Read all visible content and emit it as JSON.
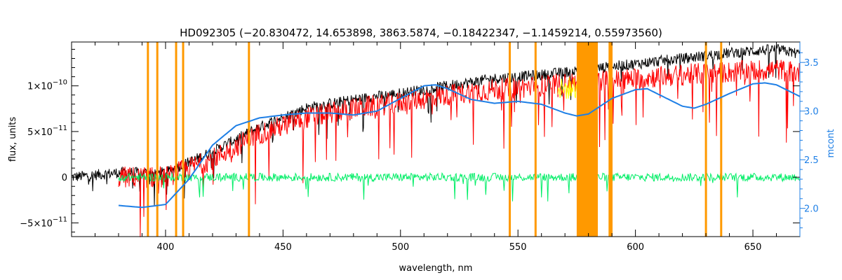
{
  "chart_data": {
    "type": "line",
    "title": "HD092305    (−20.830472, 14.653898, 3863.5874, −0.18422347, −1.1459214, 0.55973560)",
    "xlabel": "wavelength, nm",
    "ylabel": "flux, units",
    "y2label": "mcont",
    "xlim": [
      360,
      670
    ],
    "ylim": [
      -6.5e-11,
      1.48e-10
    ],
    "y2lim": [
      1.71,
      3.71
    ],
    "x_ticks": [
      400,
      450,
      500,
      550,
      600,
      650
    ],
    "x_tick_labels": [
      "400",
      "450",
      "500",
      "550",
      "600",
      "650"
    ],
    "y_ticks": [
      -5e-11,
      0,
      5e-11,
      1e-10
    ],
    "y_tick_labels": [
      {
        "mant": "−5×10",
        "exp": "−11"
      },
      {
        "mant": "0",
        "exp": ""
      },
      {
        "mant": "5×10",
        "exp": "−11"
      },
      {
        "mant": "1×10",
        "exp": "−10"
      }
    ],
    "y2_ticks": [
      2.0,
      2.5,
      3.0,
      3.5
    ],
    "y2_tick_labels": [
      "2.0",
      "2.5",
      "3.0",
      "3.5"
    ],
    "masked_lines_nm": [
      392.5,
      396.5,
      404.5,
      407.5,
      435.5,
      546.5,
      557.5,
      589.0,
      589.8,
      630.0,
      636.5
    ],
    "masked_band_nm": [
      575,
      584
    ],
    "series": [
      {
        "color": "#000000",
        "x": [
          360,
          380,
          400,
          420,
          440,
          460,
          480,
          500,
          520,
          540,
          560,
          580,
          600,
          620,
          640,
          660,
          670
        ],
        "values": [
          0,
          5e-12,
          5e-12,
          2.8e-11,
          5.5e-11,
          7.6e-11,
          8.5e-11,
          9.2e-11,
          1e-10,
          1.08e-10,
          1.12e-10,
          1.18e-10,
          1.24e-10,
          1.3e-10,
          1.36e-10,
          1.4e-10,
          1.35e-10
        ]
      },
      {
        "color": "#ff0000",
        "x": [
          380,
          400,
          420,
          440,
          460,
          480,
          500,
          520,
          540,
          560,
          580,
          600,
          620,
          640,
          660,
          670
        ],
        "values": [
          0,
          0,
          2e-11,
          4.8e-11,
          6.5e-11,
          7.5e-11,
          8.2e-11,
          9e-11,
          9.6e-11,
          1e-10,
          1.04e-10,
          1.08e-10,
          1.12e-10,
          1.15e-10,
          1.18e-10,
          1.14e-10
        ]
      },
      {
        "color": "#00ee66",
        "x": [
          380,
          670
        ],
        "values": [
          0,
          0
        ]
      },
      {
        "color": "#1e7fe6",
        "axis": "right",
        "x": [
          380,
          390,
          400,
          410,
          420,
          430,
          440,
          450,
          460,
          470,
          480,
          490,
          500,
          510,
          515,
          520,
          530,
          540,
          550,
          560,
          570,
          575,
          580,
          590,
          600,
          605,
          610,
          620,
          625,
          630,
          640,
          650,
          655,
          660,
          670
        ],
        "values": [
          2.03,
          2.01,
          2.04,
          2.3,
          2.65,
          2.85,
          2.93,
          2.96,
          2.98,
          2.98,
          2.96,
          3.0,
          3.13,
          3.26,
          3.27,
          3.23,
          3.12,
          3.08,
          3.1,
          3.07,
          2.98,
          2.95,
          2.97,
          3.13,
          3.22,
          3.23,
          3.17,
          3.05,
          3.03,
          3.07,
          3.18,
          3.28,
          3.29,
          3.27,
          3.15
        ]
      }
    ]
  }
}
